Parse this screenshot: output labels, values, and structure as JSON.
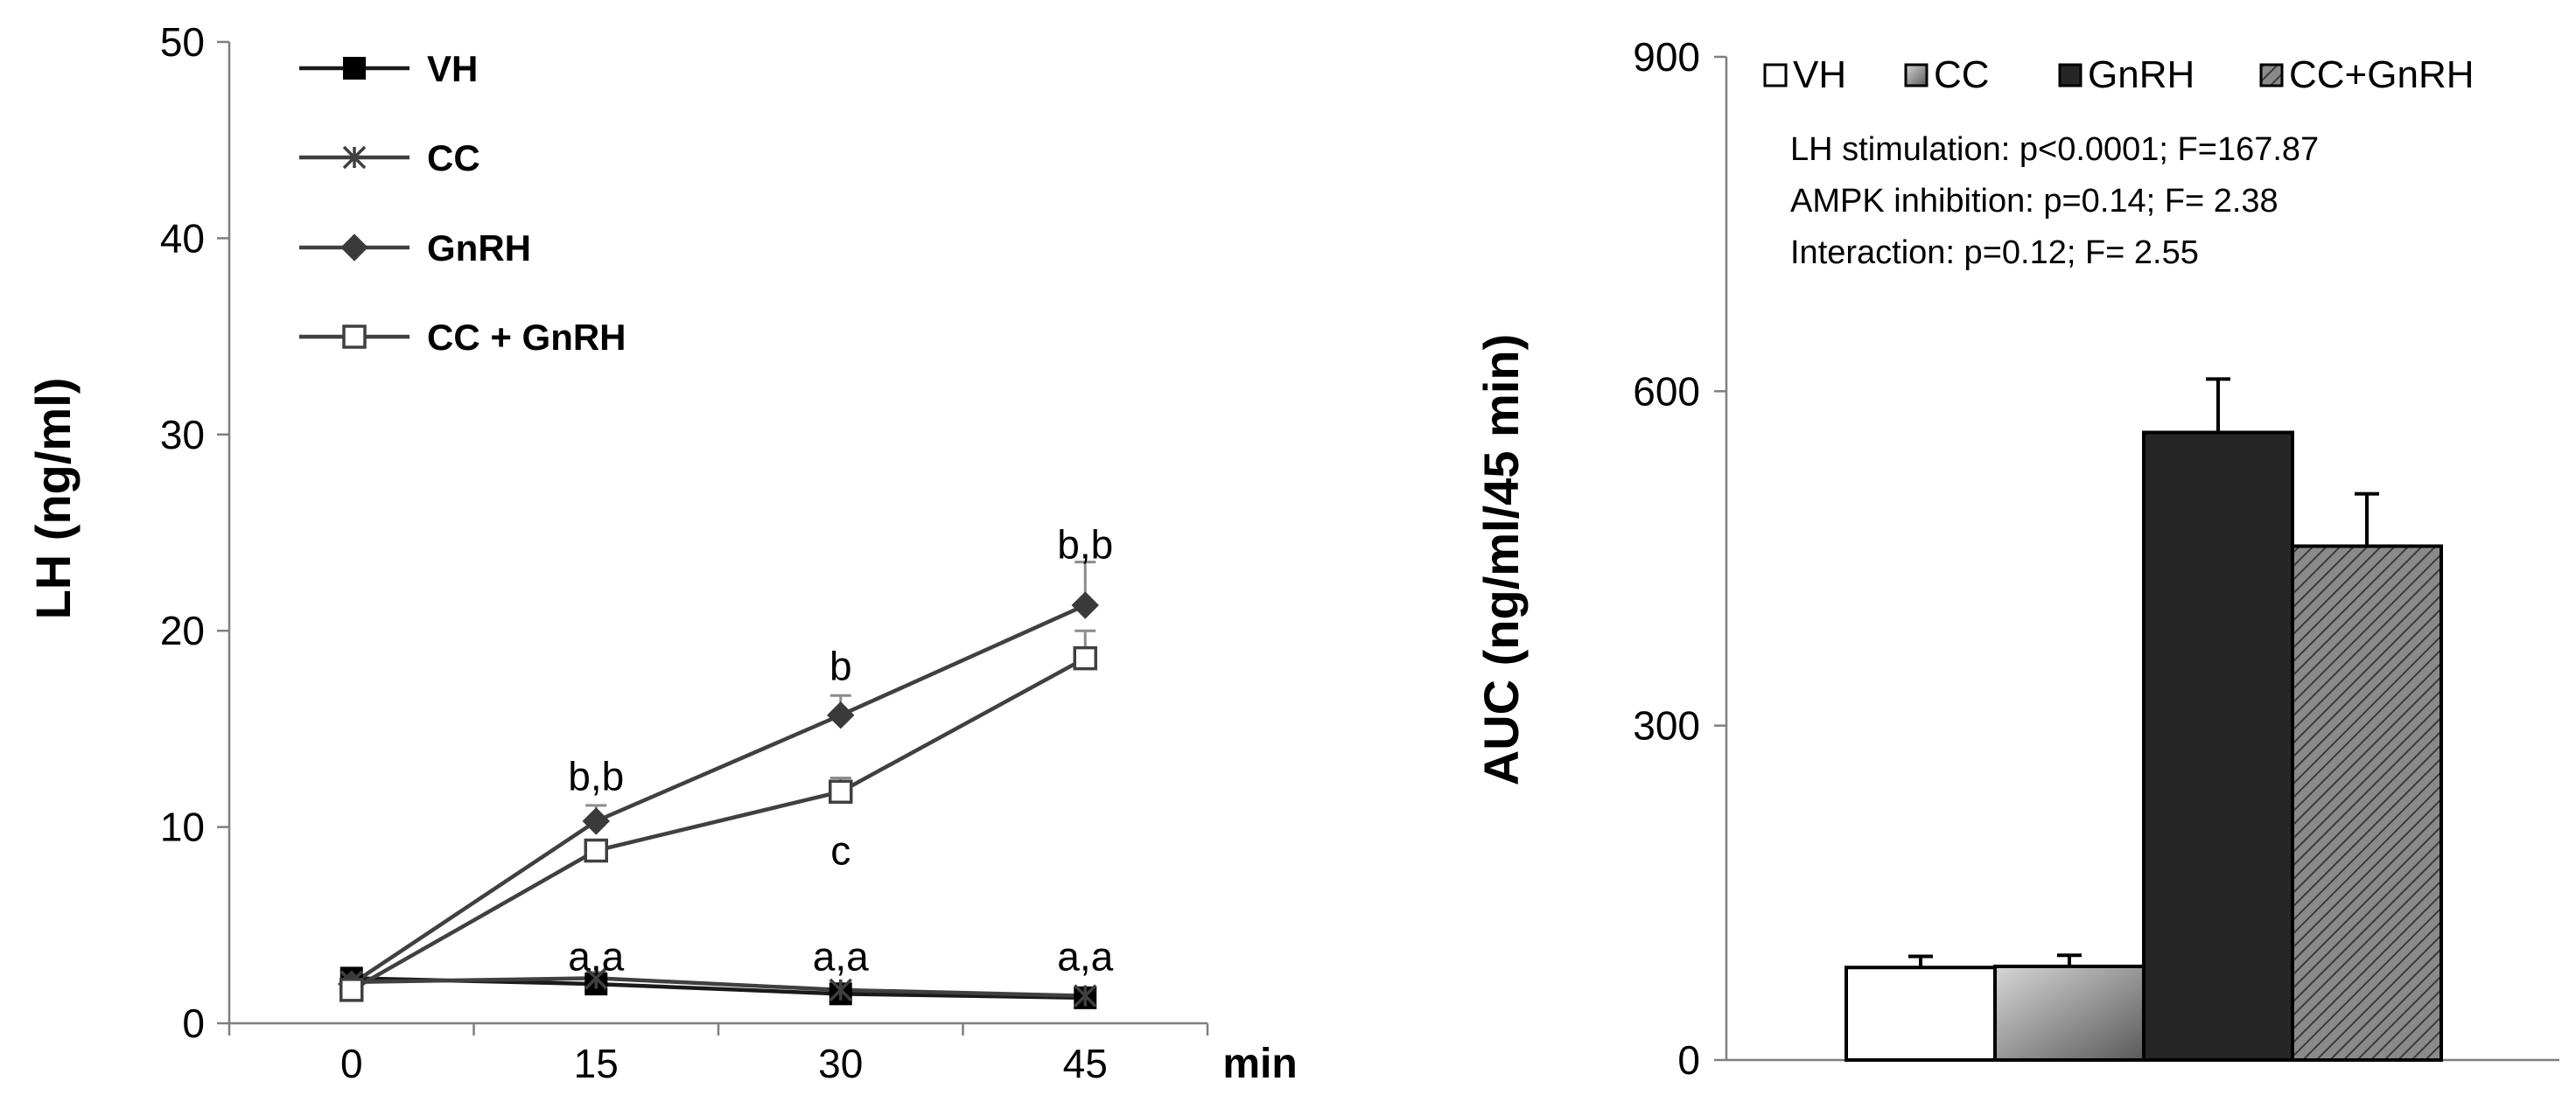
{
  "colors": {
    "axis": "#7f7f7f",
    "line_dark": "#1a1a1a",
    "line_gray": "#404040",
    "marker_square_fill": "#000000",
    "marker_diamond_fill": "#3a3a3a",
    "marker_open_fill": "#ffffff",
    "bar_vh": "#ffffff",
    "bar_cc_light": "#d6d6d6",
    "bar_cc_dark": "#5a5a5a",
    "bar_gnrh": "#262626",
    "bar_ccgnrh_bg": "#8a8a8a",
    "bar_ccgnrh_hatch": "#3a3a3a",
    "error_bar": "#8c8c8c",
    "text": "#000000"
  },
  "chart_data": [
    {
      "id": "line-chart",
      "type": "line",
      "ylabel": "LH (ng/ml)",
      "x_unit_label": "min",
      "categories": [
        "0",
        "15",
        "30",
        "45"
      ],
      "ylim": [
        0,
        50
      ],
      "yticks": [
        0,
        10,
        20,
        30,
        40,
        50
      ],
      "yticks_labels": [
        "0",
        "10",
        "20",
        "30",
        "40",
        "50"
      ],
      "legend": [
        "VH",
        "CC",
        "GnRH",
        "CC + GnRH"
      ],
      "legend_position": "top-left",
      "grid": false,
      "series": [
        {
          "name": "VH",
          "marker": "square-filled",
          "values": [
            2.3,
            2.0,
            1.5,
            1.3
          ],
          "errors": [
            0.3,
            0.3,
            0.2,
            0.2
          ]
        },
        {
          "name": "CC",
          "marker": "asterisk",
          "values": [
            2.1,
            2.3,
            1.7,
            1.4
          ],
          "errors": [
            0.3,
            0.3,
            0.2,
            0.2
          ]
        },
        {
          "name": "GnRH",
          "marker": "diamond-filled",
          "values": [
            2.0,
            10.3,
            15.7,
            21.3
          ],
          "errors": [
            0.3,
            0.8,
            1.0,
            2.2
          ]
        },
        {
          "name": "CC + GnRH",
          "marker": "square-open",
          "values": [
            1.7,
            8.8,
            11.8,
            18.6
          ],
          "errors": [
            0.3,
            0.5,
            0.7,
            1.4
          ]
        }
      ],
      "annotations": [
        {
          "text": "b,b",
          "x": "15",
          "y": 12.6
        },
        {
          "text": "b",
          "x": "30",
          "y": 18.2
        },
        {
          "text": "b,b",
          "x": "45",
          "y": 24.4
        },
        {
          "text": "c",
          "x": "30",
          "y": 8.8
        },
        {
          "text": "a,a",
          "x": "15",
          "y": 3.4
        },
        {
          "text": "a,a",
          "x": "30",
          "y": 3.4
        },
        {
          "text": "a,a",
          "x": "45",
          "y": 3.4
        }
      ]
    },
    {
      "id": "bar-chart",
      "type": "bar",
      "ylabel": "AUC (ng/ml/45 min)",
      "categories": [
        "VH",
        "CC",
        "GnRH",
        "CC+GnRH"
      ],
      "values": [
        83,
        84,
        563,
        461
      ],
      "errors": [
        10,
        10,
        48,
        47
      ],
      "ylim": [
        0,
        900
      ],
      "yticks": [
        0,
        300,
        600,
        900
      ],
      "yticks_labels": [
        "0",
        "300",
        "600",
        "900"
      ],
      "legend": [
        "VH",
        "CC",
        "GnRH",
        "CC+GnRH"
      ],
      "legend_position": "top",
      "grid": false,
      "stats": [
        "LH stimulation:  p<0.0001; F=167.87",
        "AMPK inhibition:   p=0.14; F= 2.38",
        "Interaction: p=0.12; F= 2.55"
      ]
    }
  ]
}
